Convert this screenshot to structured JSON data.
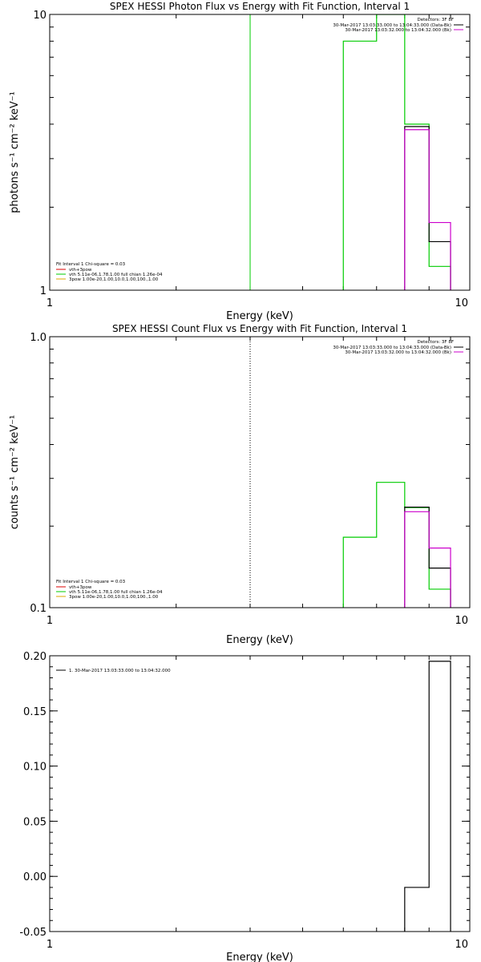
{
  "colors": {
    "background": "#ffffff",
    "axes": "#000000",
    "data_black": "#000000",
    "green": "#00cc00",
    "magenta": "#cc00cc",
    "red": "#dd0000",
    "orange": "#ddaa00"
  },
  "chart_data": [
    {
      "type": "line",
      "title": "SPEX HESSI Photon Flux vs Energy with Fit Function, Interval 1",
      "xlabel": "Energy (keV)",
      "ylabel": "photons s⁻¹ cm⁻² keV⁻¹",
      "xscale": "log",
      "yscale": "log",
      "xlim": [
        1,
        10
      ],
      "ylim": [
        1,
        10
      ],
      "xticks": [
        {
          "v": 1,
          "label": "1"
        },
        {
          "v": 10,
          "label": "10"
        }
      ],
      "yticks": [
        {
          "v": 1,
          "label": "1"
        },
        {
          "v": 10,
          "label": "10"
        }
      ],
      "vline": {
        "x": 3.0,
        "color": "green",
        "style": "solid"
      },
      "series": [
        {
          "color": "green",
          "edges": [
            5.0,
            6.0,
            7.0,
            8.0,
            9.0
          ],
          "values": [
            8.0,
            20.0,
            4.0,
            1.22
          ]
        },
        {
          "color": "data_black",
          "edges": [
            7.0,
            8.0,
            9.0
          ],
          "values": [
            3.92,
            1.5
          ]
        },
        {
          "color": "magenta",
          "edges": [
            7.0,
            8.0,
            9.0
          ],
          "values": [
            3.82,
            1.76
          ]
        }
      ],
      "legend_right": {
        "header": "Detectors: 3F 8F",
        "entries": [
          {
            "text": "30-Mar-2017 13:03:33.000 to 13:04:33.000 (Data-Bk)",
            "color": "data_black"
          },
          {
            "text": "30-Mar-2017 13:03:32.000 to 13:04:32.000 (Bk)",
            "color": "magenta"
          }
        ]
      },
      "legend_left": {
        "header": "Fit Interval 1   Chi-square = 0.03",
        "entries": [
          {
            "text": "vth+3pow",
            "color": "red"
          },
          {
            "text": "vth 5.11e-06,1.78,1.00  full chian 1.26e-04",
            "color": "green"
          },
          {
            "text": "3pow 1.00e-20,1.00,10.0,1.00,100.,1.00",
            "color": "orange"
          }
        ]
      }
    },
    {
      "type": "line",
      "title": "SPEX HESSI Count Flux vs Energy with Fit Function, Interval 1",
      "xlabel": "Energy (keV)",
      "ylabel": "counts s⁻¹ cm⁻² keV⁻¹",
      "xscale": "log",
      "yscale": "log",
      "xlim": [
        1,
        10
      ],
      "ylim": [
        0.1,
        1.0
      ],
      "xticks": [
        {
          "v": 1,
          "label": "1"
        },
        {
          "v": 10,
          "label": "10"
        }
      ],
      "yticks": [
        {
          "v": 0.1,
          "label": "0.1"
        },
        {
          "v": 1.0,
          "label": "1.0"
        }
      ],
      "vline": {
        "x": 3.0,
        "color": "data_black",
        "style": "dotted"
      },
      "series": [
        {
          "color": "green",
          "edges": [
            5.0,
            6.0,
            7.0,
            8.0,
            9.0
          ],
          "values": [
            0.182,
            0.29,
            0.234,
            0.117
          ]
        },
        {
          "color": "data_black",
          "edges": [
            7.0,
            8.0,
            9.0
          ],
          "values": [
            0.235,
            0.14
          ]
        },
        {
          "color": "magenta",
          "edges": [
            7.0,
            8.0,
            9.0
          ],
          "values": [
            0.226,
            0.166
          ]
        }
      ],
      "legend_right": {
        "header": "Detectors: 3F 8F",
        "entries": [
          {
            "text": "30-Mar-2017 13:03:33.000 to 13:04:33.000 (Data-Bk)",
            "color": "data_black"
          },
          {
            "text": "30-Mar-2017 13:03:32.000 to 13:04:32.000 (Bk)",
            "color": "magenta"
          }
        ]
      },
      "legend_left": {
        "header": "Fit Interval 1   Chi-square = 0.03",
        "entries": [
          {
            "text": "vth+3pow",
            "color": "red"
          },
          {
            "text": "vth 5.11e-06,1.78,1.00  full chian 1.26e-04",
            "color": "green"
          },
          {
            "text": "3pow 1.00e-20,1.00,10.0,1.00,100.,1.00",
            "color": "orange"
          }
        ]
      }
    },
    {
      "type": "line",
      "title": "",
      "xlabel": "Energy (keV)",
      "ylabel": "",
      "xscale": "log",
      "yscale": "linear",
      "xlim": [
        1,
        10
      ],
      "ylim": [
        -0.05,
        0.2
      ],
      "xticks": [
        {
          "v": 1,
          "label": "1"
        },
        {
          "v": 10,
          "label": "10"
        }
      ],
      "yticks": [
        {
          "v": -0.05,
          "label": "-0.05"
        },
        {
          "v": 0.0,
          "label": "0.00"
        },
        {
          "v": 0.05,
          "label": "0.05"
        },
        {
          "v": 0.1,
          "label": "0.10"
        },
        {
          "v": 0.15,
          "label": "0.15"
        },
        {
          "v": 0.2,
          "label": "0.20"
        }
      ],
      "series": [
        {
          "color": "data_black",
          "edges": [
            7.0,
            8.0,
            9.0
          ],
          "values": [
            -0.01,
            0.195
          ]
        }
      ],
      "legend_right": null,
      "legend_left": {
        "header": "",
        "entries": [
          {
            "text": "1. 30-Mar-2017 13:03:33.000 to 13:04:32.000",
            "color": "data_black"
          }
        ]
      }
    }
  ]
}
